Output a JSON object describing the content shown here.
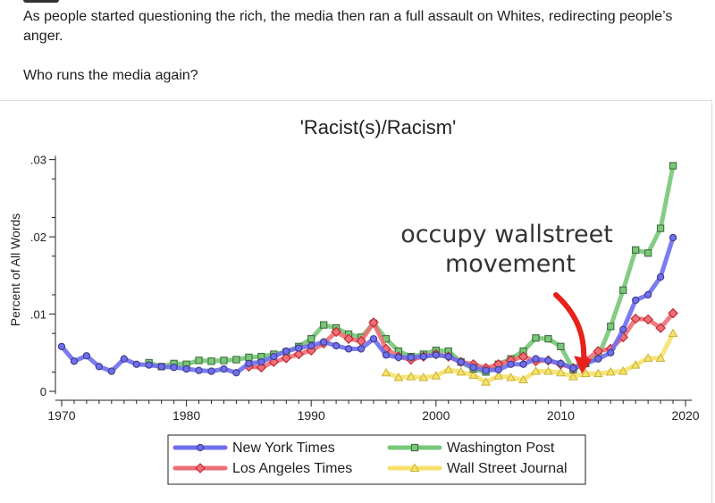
{
  "post": {
    "line1": "As people started questioning the rich, the media then ran a full assault on Whites, redirecting people’s anger.",
    "line2": "Who runs the media again?"
  },
  "chart_data": {
    "type": "line",
    "title": "'Racist(s)/Racism'",
    "ylabel": "Percent of All Words",
    "xlabel": "",
    "xlim": [
      1969.5,
      2020.5
    ],
    "ylim": [
      0,
      0.031
    ],
    "xticks": [
      "1970",
      "1980",
      "1990",
      "2000",
      "2010",
      "2020"
    ],
    "yticks": [
      ".03",
      ".02",
      ".01",
      "0"
    ],
    "annotation": {
      "text_line1": "occupy wallstreet",
      "text_line2": "movement",
      "arrow_color": "#e8211b",
      "arrow_to": [
        2011.7,
        0.0025
      ]
    },
    "legend_position": "bottom",
    "series": [
      {
        "name": "New York Times",
        "color": "#6e6ef0",
        "marker": "circle",
        "x": [
          1970,
          1971,
          1972,
          1973,
          1974,
          1975,
          1976,
          1977,
          1978,
          1979,
          1980,
          1981,
          1982,
          1983,
          1984,
          1985,
          1986,
          1987,
          1988,
          1989,
          1990,
          1991,
          1992,
          1993,
          1994,
          1995,
          1996,
          1997,
          1998,
          1999,
          2000,
          2001,
          2002,
          2003,
          2004,
          2005,
          2006,
          2007,
          2008,
          2009,
          2010,
          2011,
          2012,
          2013,
          2014,
          2015,
          2016,
          2017,
          2018,
          2019
        ],
        "values": [
          0.0058,
          0.0039,
          0.0046,
          0.0032,
          0.0026,
          0.0042,
          0.0035,
          0.0034,
          0.0032,
          0.0031,
          0.0029,
          0.0027,
          0.0026,
          0.0029,
          0.0024,
          0.0036,
          0.0038,
          0.0045,
          0.0052,
          0.0056,
          0.0059,
          0.0064,
          0.0059,
          0.0055,
          0.0055,
          0.0068,
          0.0047,
          0.0044,
          0.0044,
          0.0045,
          0.0047,
          0.0045,
          0.0038,
          0.0031,
          0.0027,
          0.0028,
          0.0035,
          0.0035,
          0.0042,
          0.004,
          0.0036,
          0.003,
          0.0036,
          0.0042,
          0.005,
          0.008,
          0.0118,
          0.0125,
          0.0148,
          0.0199
        ]
      },
      {
        "name": "Los Angeles Times",
        "color": "#ee6f78",
        "marker": "diamond",
        "x": [
          1985,
          1986,
          1987,
          1988,
          1989,
          1990,
          1991,
          1992,
          1993,
          1994,
          1995,
          1996,
          1997,
          1998,
          1999,
          2000,
          2001,
          2002,
          2003,
          2004,
          2005,
          2006,
          2007,
          2008,
          2009,
          2010,
          2011,
          2012,
          2013,
          2014,
          2015,
          2016,
          2017,
          2018,
          2019
        ],
        "values": [
          0.0032,
          0.0031,
          0.0038,
          0.0043,
          0.0048,
          0.0053,
          0.0062,
          0.0077,
          0.0068,
          0.0065,
          0.0089,
          0.0055,
          0.0045,
          0.0041,
          0.0045,
          0.0048,
          0.0045,
          0.0038,
          0.0035,
          0.003,
          0.0035,
          0.004,
          0.0045,
          0.0039,
          0.004,
          0.0035,
          0.003,
          0.004,
          0.0052,
          0.0055,
          0.007,
          0.0094,
          0.0093,
          0.0082,
          0.0101
        ]
      },
      {
        "name": "Washington Post",
        "color": "#78c878",
        "marker": "square",
        "x": [
          1977,
          1978,
          1979,
          1980,
          1981,
          1982,
          1983,
          1984,
          1985,
          1986,
          1987,
          1988,
          1989,
          1990,
          1991,
          1992,
          1993,
          1994,
          1995,
          1996,
          1997,
          1998,
          1999,
          2000,
          2001,
          2002,
          2003,
          2004,
          2005,
          2006,
          2007,
          2008,
          2009,
          2010,
          2011,
          2012,
          2013,
          2014,
          2015,
          2016,
          2017,
          2018,
          2019
        ],
        "values": [
          0.0037,
          0.0032,
          0.0036,
          0.0035,
          0.004,
          0.0039,
          0.004,
          0.0041,
          0.0044,
          0.0045,
          0.0048,
          0.0051,
          0.0058,
          0.0068,
          0.0086,
          0.0082,
          0.0074,
          0.007,
          0.0088,
          0.0068,
          0.0052,
          0.0045,
          0.0048,
          0.0053,
          0.0052,
          0.0038,
          0.0029,
          0.0025,
          0.0035,
          0.0042,
          0.0052,
          0.0069,
          0.0068,
          0.0058,
          0.0028,
          0.0036,
          0.0045,
          0.0084,
          0.0131,
          0.0183,
          0.0179,
          0.0211,
          0.0292
        ]
      },
      {
        "name": "Wall Street Journal",
        "color": "#f6e26a",
        "marker": "triangle",
        "x": [
          1996,
          1997,
          1998,
          1999,
          2000,
          2001,
          2002,
          2003,
          2004,
          2005,
          2006,
          2007,
          2008,
          2009,
          2010,
          2011,
          2012,
          2013,
          2014,
          2015,
          2016,
          2017,
          2018,
          2019
        ],
        "values": [
          0.0024,
          0.0018,
          0.0019,
          0.0018,
          0.002,
          0.0028,
          0.0025,
          0.0021,
          0.0012,
          0.002,
          0.0018,
          0.0015,
          0.0026,
          0.0026,
          0.0024,
          0.0019,
          0.0023,
          0.0023,
          0.0025,
          0.0026,
          0.0034,
          0.0043,
          0.0043,
          0.0075
        ]
      }
    ]
  }
}
